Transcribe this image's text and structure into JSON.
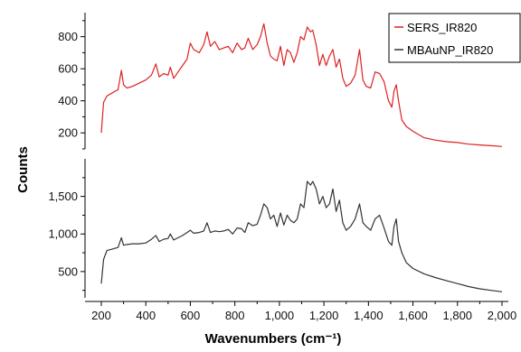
{
  "chart_data": {
    "type": "line",
    "xlabel": "Wavenumbers (cm⁻¹)",
    "ylabel": "Counts",
    "x_ticks": [
      "200",
      "400",
      "600",
      "800",
      "1,000",
      "1,200",
      "1,400",
      "1,600",
      "1,800",
      "2,000"
    ],
    "x_range": [
      200,
      2000
    ],
    "legend_position": "top-right",
    "panels": [
      {
        "name": "top",
        "ylim": [
          100,
          950
        ],
        "y_ticks": [
          "200",
          "400",
          "600",
          "800"
        ],
        "series": [
          {
            "name": "SERS_IR820",
            "color": "#dd2222",
            "x": [
              200,
              210,
              225,
              250,
              275,
              290,
              300,
              315,
              340,
              370,
              400,
              425,
              445,
              460,
              480,
              500,
              510,
              525,
              545,
              565,
              585,
              600,
              615,
              640,
              660,
              675,
              690,
              710,
              730,
              750,
              770,
              790,
              810,
              830,
              845,
              860,
              880,
              900,
              915,
              930,
              945,
              960,
              975,
              990,
              1005,
              1020,
              1035,
              1050,
              1065,
              1080,
              1095,
              1110,
              1125,
              1140,
              1150,
              1165,
              1180,
              1195,
              1210,
              1225,
              1240,
              1255,
              1270,
              1285,
              1300,
              1320,
              1340,
              1360,
              1375,
              1390,
              1410,
              1430,
              1450,
              1470,
              1490,
              1505,
              1515,
              1525,
              1535,
              1550,
              1570,
              1600,
              1650,
              1700,
              1750,
              1800,
              1850,
              1900,
              1950,
              2000
            ],
            "values": [
              200,
              390,
              430,
              450,
              470,
              590,
              500,
              480,
              490,
              510,
              530,
              560,
              630,
              550,
              570,
              560,
              610,
              540,
              580,
              620,
              660,
              760,
              720,
              700,
              750,
              830,
              740,
              770,
              720,
              730,
              740,
              700,
              760,
              720,
              730,
              790,
              720,
              750,
              800,
              880,
              760,
              680,
              660,
              650,
              740,
              620,
              720,
              700,
              640,
              700,
              800,
              780,
              860,
              830,
              840,
              750,
              620,
              690,
              620,
              680,
              720,
              610,
              660,
              540,
              490,
              510,
              560,
              720,
              530,
              490,
              480,
              580,
              570,
              520,
              400,
              360,
              460,
              500,
              400,
              280,
              240,
              210,
              170,
              155,
              145,
              140,
              130,
              125,
              120,
              115
            ]
          }
        ]
      },
      {
        "name": "bottom",
        "ylim": [
          150,
          2000
        ],
        "y_ticks": [
          "500",
          "1,000",
          "1,500"
        ],
        "series": [
          {
            "name": "MBAuNP_IR820",
            "color": "#333333",
            "x": [
              200,
              210,
              225,
              250,
              275,
              290,
              300,
              315,
              340,
              370,
              400,
              425,
              445,
              460,
              480,
              500,
              510,
              525,
              545,
              565,
              585,
              600,
              615,
              640,
              660,
              675,
              690,
              710,
              730,
              750,
              770,
              790,
              810,
              830,
              845,
              860,
              880,
              900,
              915,
              930,
              945,
              960,
              975,
              990,
              1005,
              1020,
              1035,
              1050,
              1065,
              1080,
              1095,
              1110,
              1125,
              1140,
              1150,
              1165,
              1180,
              1195,
              1210,
              1225,
              1240,
              1255,
              1270,
              1285,
              1300,
              1320,
              1340,
              1360,
              1375,
              1390,
              1410,
              1430,
              1450,
              1470,
              1490,
              1505,
              1515,
              1525,
              1535,
              1550,
              1570,
              1600,
              1650,
              1700,
              1750,
              1800,
              1850,
              1900,
              1950,
              2000
            ],
            "values": [
              340,
              660,
              780,
              800,
              820,
              950,
              850,
              860,
              870,
              870,
              880,
              930,
              980,
              900,
              930,
              940,
              1000,
              920,
              950,
              980,
              1020,
              1050,
              1010,
              1020,
              1040,
              1150,
              1020,
              1040,
              1030,
              1040,
              1060,
              1000,
              1080,
              1070,
              1020,
              1150,
              1110,
              1130,
              1250,
              1400,
              1350,
              1200,
              1250,
              1100,
              1280,
              1120,
              1250,
              1180,
              1150,
              1200,
              1400,
              1350,
              1700,
              1650,
              1700,
              1600,
              1400,
              1500,
              1350,
              1400,
              1600,
              1300,
              1450,
              1150,
              1050,
              1100,
              1200,
              1400,
              1150,
              1100,
              1050,
              1200,
              1250,
              1080,
              900,
              850,
              1100,
              1200,
              900,
              750,
              620,
              540,
              470,
              420,
              380,
              340,
              300,
              270,
              250,
              230
            ]
          }
        ]
      }
    ]
  }
}
